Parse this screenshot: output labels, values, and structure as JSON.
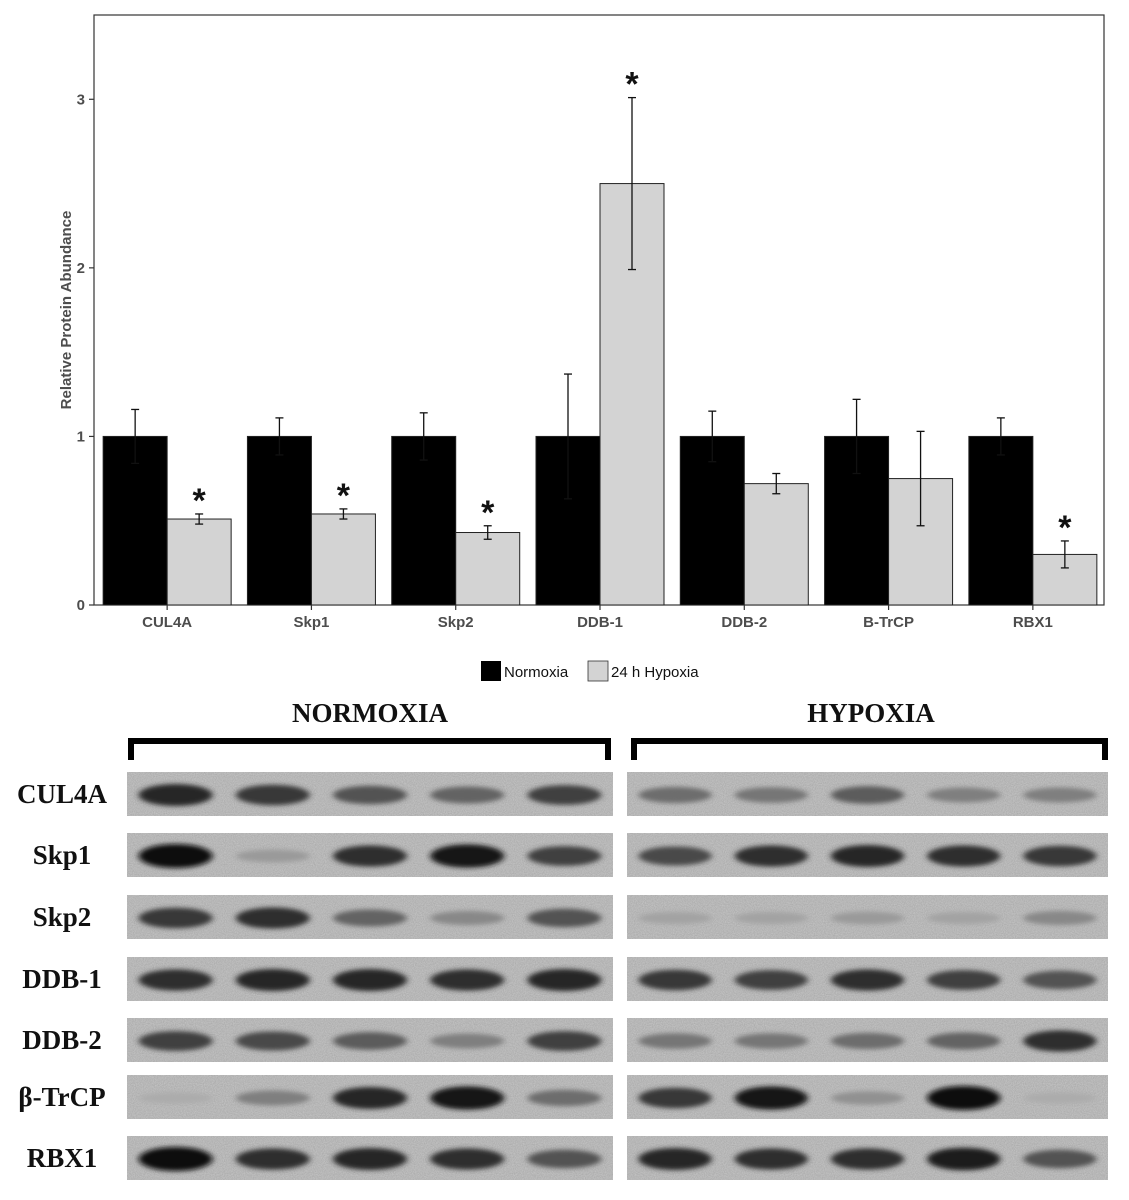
{
  "chart_data": {
    "type": "bar",
    "ylabel": "Relative Protein Abundance",
    "xlabel": "",
    "ylim": [
      0,
      3.5
    ],
    "yticks": [
      "0",
      "1",
      "2",
      "3"
    ],
    "categories": [
      "CUL4A",
      "Skp1",
      "Skp2",
      "DDB-1",
      "DDB-2",
      "B-TrCP",
      "RBX1"
    ],
    "series": [
      {
        "name": "Normoxia",
        "color": "#000000",
        "values": [
          1.0,
          1.0,
          1.0,
          1.0,
          1.0,
          1.0,
          1.0
        ],
        "errors": [
          0.16,
          0.11,
          0.14,
          0.37,
          0.15,
          0.22,
          0.11
        ]
      },
      {
        "name": "24 h Hypoxia",
        "color": "#d3d3d3",
        "values": [
          0.51,
          0.54,
          0.43,
          2.5,
          0.72,
          0.75,
          0.3
        ],
        "errors": [
          0.03,
          0.03,
          0.04,
          0.51,
          0.06,
          0.28,
          0.08
        ]
      }
    ],
    "significance": [
      {
        "category": "CUL4A",
        "series": "24 h Hypoxia",
        "label": "*"
      },
      {
        "category": "Skp1",
        "series": "24 h Hypoxia",
        "label": "*"
      },
      {
        "category": "Skp2",
        "series": "24 h Hypoxia",
        "label": "*"
      },
      {
        "category": "DDB-1",
        "series": "24 h Hypoxia",
        "label": "*"
      },
      {
        "category": "RBX1",
        "series": "24 h Hypoxia",
        "label": "*"
      }
    ],
    "legend_position": "bottom",
    "grid": false
  },
  "blot": {
    "groups": [
      "NORMOXIA",
      "HYPOXIA"
    ],
    "rows": [
      "CUL4A",
      "Skp1",
      "Skp2",
      "DDB-1",
      "DDB-2",
      "β-TrCP",
      "RBX1"
    ],
    "lanes_per_group": 5,
    "band_intensity": [
      [
        [
          0.85,
          0.75,
          0.6,
          0.5,
          0.7
        ],
        [
          0.45,
          0.4,
          0.55,
          0.35,
          0.35
        ]
      ],
      [
        [
          1.0,
          0.2,
          0.8,
          0.95,
          0.7
        ],
        [
          0.65,
          0.8,
          0.85,
          0.8,
          0.75
        ]
      ],
      [
        [
          0.75,
          0.8,
          0.5,
          0.3,
          0.6
        ],
        [
          0.15,
          0.15,
          0.2,
          0.15,
          0.3
        ]
      ],
      [
        [
          0.8,
          0.85,
          0.85,
          0.8,
          0.85
        ],
        [
          0.75,
          0.7,
          0.8,
          0.7,
          0.6
        ]
      ],
      [
        [
          0.7,
          0.65,
          0.55,
          0.35,
          0.7
        ],
        [
          0.4,
          0.4,
          0.45,
          0.5,
          0.8
        ]
      ],
      [
        [
          0.1,
          0.35,
          0.85,
          0.95,
          0.45
        ],
        [
          0.75,
          0.95,
          0.25,
          1.0,
          0.1
        ]
      ],
      [
        [
          1.0,
          0.8,
          0.85,
          0.8,
          0.6
        ],
        [
          0.85,
          0.8,
          0.8,
          0.9,
          0.6
        ]
      ]
    ]
  }
}
